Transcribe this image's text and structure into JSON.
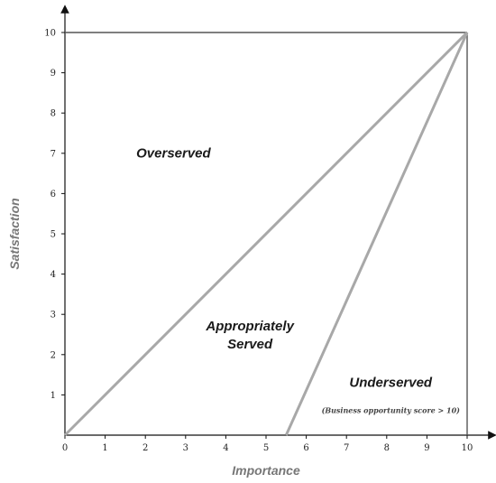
{
  "chart_data": {
    "type": "diagram",
    "xlabel": "Importance",
    "ylabel": "Satisfaction",
    "xlim": [
      0,
      10
    ],
    "ylim": [
      0,
      10
    ],
    "x_ticks": [
      "0",
      "1",
      "2",
      "3",
      "4",
      "5",
      "6",
      "7",
      "8",
      "9",
      "10"
    ],
    "y_ticks": [
      "1",
      "2",
      "3",
      "4",
      "5",
      "6",
      "7",
      "8",
      "9",
      "10"
    ],
    "lines": [
      {
        "name": "diagonal",
        "from": [
          0,
          0
        ],
        "to": [
          10,
          10
        ]
      },
      {
        "name": "opportunity-boundary",
        "from": [
          5.5,
          0
        ],
        "to": [
          10,
          10
        ]
      }
    ],
    "regions": [
      {
        "label": "Overserved",
        "at": [
          2.7,
          6.9
        ]
      },
      {
        "label": "Appropriately",
        "at": [
          4.6,
          2.6
        ]
      },
      {
        "label": "Served",
        "at": [
          4.6,
          2.15
        ]
      },
      {
        "label": "Underserved",
        "at": [
          8.1,
          1.2
        ]
      }
    ],
    "note": {
      "text": "(Business opportunity score  > 10)",
      "at": [
        8.1,
        0.55
      ]
    }
  }
}
